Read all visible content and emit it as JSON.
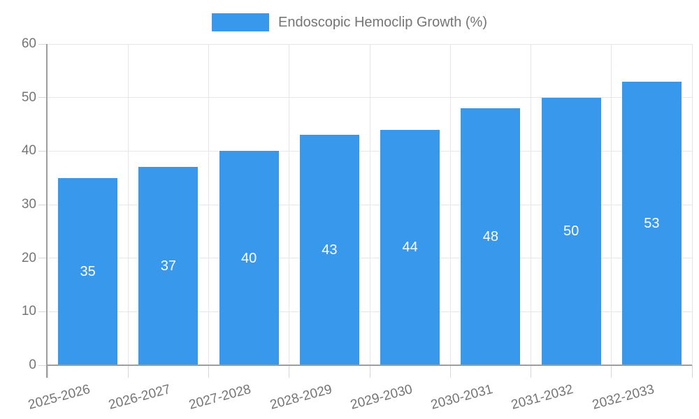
{
  "legend": {
    "label": "Endoscopic Hemoclip Growth (%)"
  },
  "chart_data": {
    "type": "bar",
    "title": "Endoscopic Hemoclip Growth (%)",
    "categories": [
      "2025-2026",
      "2026-2027",
      "2027-2028",
      "2028-2029",
      "2029-2030",
      "2030-2031",
      "2031-2032",
      "2032-2033"
    ],
    "values": [
      35,
      37,
      40,
      43,
      44,
      48,
      50,
      53
    ],
    "value_labels": [
      "35",
      "37",
      "40",
      "43",
      "44",
      "48",
      "50",
      "53"
    ],
    "xlabel": "",
    "ylabel": "",
    "ylim": [
      0,
      60
    ],
    "yticks": [
      0,
      10,
      20,
      30,
      40,
      50,
      60
    ],
    "grid": true,
    "legend_position": "top-center",
    "x_label_rotation_deg": -15,
    "colors": {
      "bar": "#3899EC",
      "axis_text": "#757575",
      "value_label": "#FFFFFF",
      "gridline": "#E6E6E6",
      "axis_line": "#9E9E9E",
      "tick": "#D6D6D6",
      "background": "#FFFFFF"
    }
  }
}
